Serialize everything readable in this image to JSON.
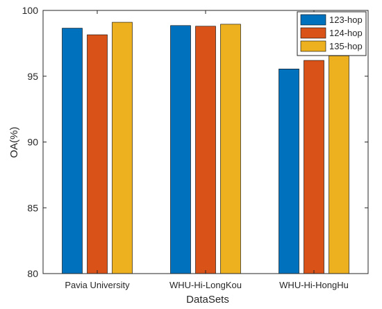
{
  "chart_data": {
    "type": "bar",
    "title": "",
    "xlabel": "DataSets",
    "ylabel": "OA(%)",
    "ylim": [
      80,
      100
    ],
    "yticks": [
      80,
      85,
      90,
      95,
      100
    ],
    "categories": [
      "Pavia University",
      "WHU-Hi-LongKou",
      "WHU-Hi-HongHu"
    ],
    "series": [
      {
        "name": "123-hop",
        "color": "#0072BD",
        "values": [
          98.65,
          98.85,
          95.55
        ]
      },
      {
        "name": "124-hop",
        "color": "#D95319",
        "values": [
          98.15,
          98.8,
          96.2
        ]
      },
      {
        "name": "135-hop",
        "color": "#EDB120",
        "values": [
          99.1,
          98.95,
          96.55
        ]
      }
    ],
    "grid": false,
    "legend_position": "top-right"
  }
}
